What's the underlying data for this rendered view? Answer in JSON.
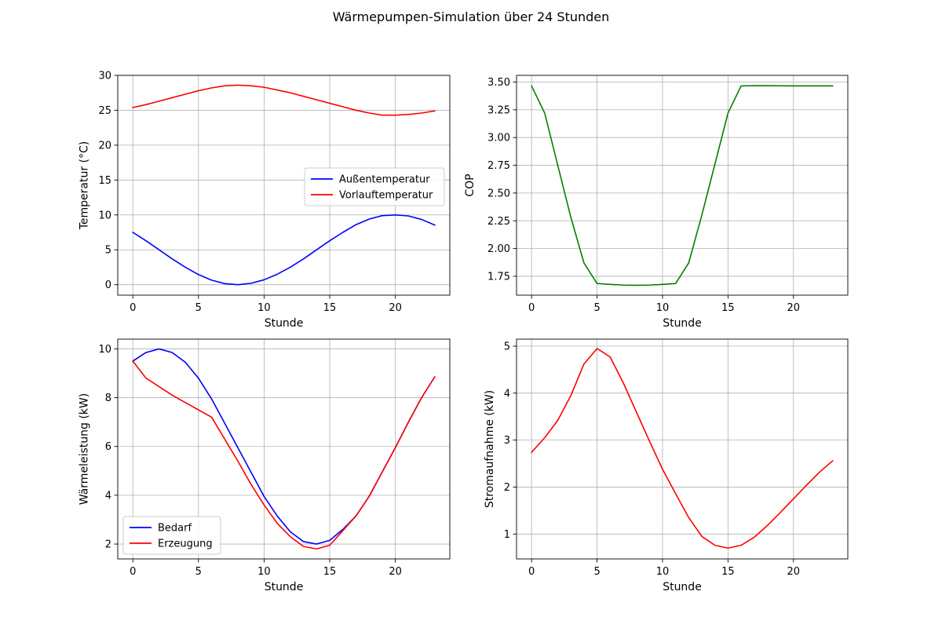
{
  "figure": {
    "title": "Wärmepumpen-Simulation über 24 Stunden"
  },
  "chart_data": [
    {
      "type": "line",
      "xlabel": "Stunde",
      "ylabel": "Temperatur (°C)",
      "xlim": [
        -1.15,
        24.15
      ],
      "ylim": [
        -1.5,
        30
      ],
      "xticks": [
        0,
        5,
        10,
        15,
        20
      ],
      "yticks": [
        0,
        5,
        10,
        15,
        20,
        25,
        30
      ],
      "ytick_labels": [
        "0",
        "5",
        "10",
        "15",
        "20",
        "25",
        "30"
      ],
      "grid": true,
      "legend": "center-right",
      "x": [
        0,
        1,
        2,
        3,
        4,
        5,
        6,
        7,
        8,
        9,
        10,
        11,
        12,
        13,
        14,
        15,
        16,
        17,
        18,
        19,
        20,
        21,
        22,
        23
      ],
      "series": [
        {
          "name": "Außentemperatur",
          "color": "#0000ff",
          "values": [
            7.5,
            6.3,
            5.0,
            3.7,
            2.5,
            1.45,
            0.65,
            0.15,
            0.0,
            0.2,
            0.7,
            1.5,
            2.5,
            3.7,
            5.0,
            6.3,
            7.5,
            8.6,
            9.4,
            9.9,
            10.0,
            9.85,
            9.35,
            8.55
          ]
        },
        {
          "name": "Vorlauftemperatur",
          "color": "#ff0000",
          "values": [
            25.4,
            25.8,
            26.3,
            26.8,
            27.3,
            27.8,
            28.2,
            28.5,
            28.6,
            28.5,
            28.3,
            27.9,
            27.5,
            27.0,
            26.5,
            26.0,
            25.5,
            25.0,
            24.6,
            24.3,
            24.3,
            24.4,
            24.6,
            24.9
          ]
        }
      ]
    },
    {
      "type": "line",
      "xlabel": "Stunde",
      "ylabel": "COP",
      "xlim": [
        -1.15,
        24.15
      ],
      "ylim": [
        1.58,
        3.56
      ],
      "xticks": [
        0,
        5,
        10,
        15,
        20
      ],
      "yticks": [
        1.75,
        2.0,
        2.25,
        2.5,
        2.75,
        3.0,
        3.25,
        3.5
      ],
      "ytick_labels": [
        "1.75",
        "2.00",
        "2.25",
        "2.50",
        "2.75",
        "3.00",
        "3.25",
        "3.50"
      ],
      "grid": true,
      "x": [
        0,
        1,
        2,
        3,
        4,
        5,
        6,
        7,
        8,
        9,
        10,
        11,
        12,
        13,
        14,
        15,
        16,
        17,
        18,
        19,
        20,
        21,
        22,
        23
      ],
      "series": [
        {
          "color": "#008000",
          "values": [
            3.465,
            3.22,
            2.75,
            2.28,
            1.87,
            1.685,
            1.677,
            1.671,
            1.669,
            1.671,
            1.677,
            1.685,
            1.87,
            2.3,
            2.76,
            3.22,
            3.465,
            3.467,
            3.467,
            3.466,
            3.465,
            3.465,
            3.465,
            3.465
          ]
        }
      ]
    },
    {
      "type": "line",
      "xlabel": "Stunde",
      "ylabel": "Wärmeleistung (kW)",
      "xlim": [
        -1.15,
        24.15
      ],
      "ylim": [
        1.39,
        10.4
      ],
      "xticks": [
        0,
        5,
        10,
        15,
        20
      ],
      "yticks": [
        2,
        4,
        6,
        8,
        10
      ],
      "ytick_labels": [
        "2",
        "4",
        "6",
        "8",
        "10"
      ],
      "grid": true,
      "legend": "lower-left",
      "x": [
        0,
        1,
        2,
        3,
        4,
        5,
        6,
        7,
        8,
        9,
        10,
        11,
        12,
        13,
        14,
        15,
        16,
        17,
        18,
        19,
        20,
        21,
        22,
        23
      ],
      "series": [
        {
          "name": "Bedarf",
          "color": "#0000ff",
          "values": [
            9.5,
            9.85,
            10.0,
            9.85,
            9.45,
            8.8,
            7.95,
            6.95,
            5.95,
            4.95,
            3.95,
            3.15,
            2.5,
            2.1,
            2.0,
            2.15,
            2.6,
            3.15,
            3.95,
            4.95,
            5.95,
            7.0,
            8.0,
            8.85
          ]
        },
        {
          "name": "Erzeugung",
          "color": "#ff0000",
          "values": [
            9.5,
            8.8,
            8.45,
            8.1,
            7.8,
            7.5,
            7.2,
            6.3,
            5.4,
            4.45,
            3.6,
            2.85,
            2.3,
            1.9,
            1.8,
            1.95,
            2.55,
            3.15,
            3.95,
            4.95,
            5.95,
            7.0,
            8.0,
            8.85
          ]
        }
      ]
    },
    {
      "type": "line",
      "xlabel": "Stunde",
      "ylabel": "Stromaufnahme (kW)",
      "xlim": [
        -1.15,
        24.15
      ],
      "ylim": [
        0.47,
        5.15
      ],
      "xticks": [
        0,
        5,
        10,
        15,
        20
      ],
      "yticks": [
        1,
        2,
        3,
        4,
        5
      ],
      "ytick_labels": [
        "1",
        "2",
        "3",
        "4",
        "5"
      ],
      "grid": true,
      "x": [
        0,
        1,
        2,
        3,
        4,
        5,
        6,
        7,
        8,
        9,
        10,
        11,
        12,
        13,
        14,
        15,
        16,
        17,
        18,
        19,
        20,
        21,
        22,
        23
      ],
      "series": [
        {
          "color": "#ff0000",
          "values": [
            2.74,
            3.05,
            3.42,
            3.95,
            4.62,
            4.95,
            4.77,
            4.22,
            3.6,
            2.98,
            2.38,
            1.86,
            1.35,
            0.95,
            0.76,
            0.7,
            0.76,
            0.93,
            1.18,
            1.46,
            1.75,
            2.04,
            2.32,
            2.56
          ]
        }
      ]
    }
  ]
}
